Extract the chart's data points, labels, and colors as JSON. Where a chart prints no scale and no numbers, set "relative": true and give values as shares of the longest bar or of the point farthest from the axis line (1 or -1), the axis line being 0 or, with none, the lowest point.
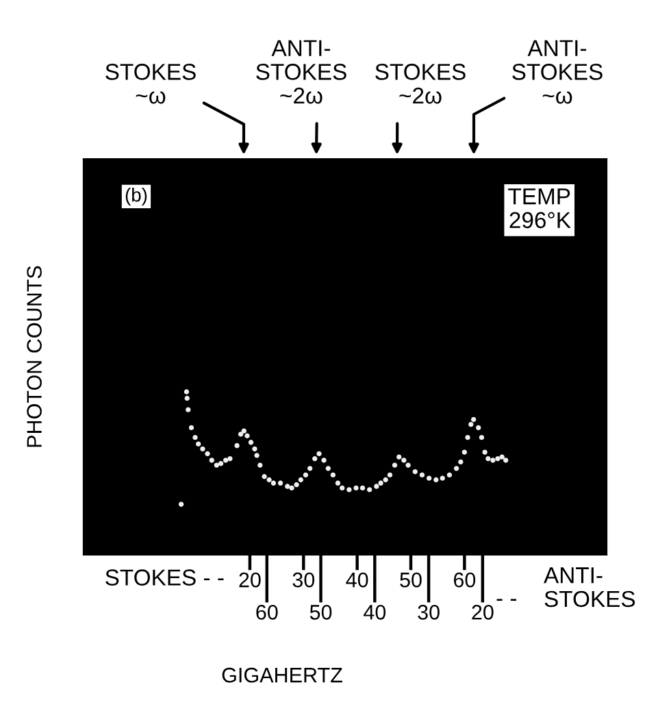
{
  "chart_data": {
    "type": "scatter",
    "xlabel": "GIGAHERTZ",
    "ylabel": "PHOTON COUNTS",
    "relative": true,
    "marker": "circle",
    "tick_labels": "x",
    "xlim": [
      -11,
      86.5
    ],
    "xticks": [
      20,
      30,
      40,
      50,
      60
    ],
    "x2lim": [
      94,
      -3
    ],
    "x2ticks": [
      60,
      50,
      40,
      30,
      20
    ],
    "x": [
      7.2,
      8.2,
      8.3,
      8.5,
      9.1,
      9.8,
      10.4,
      11.2,
      12.1,
      12.9,
      13.8,
      14.6,
      15.5,
      16.3,
      17.6,
      18.3,
      18.9,
      19.5,
      20.2,
      20.9,
      21.3,
      21.9,
      22.7,
      23.6,
      24.4,
      25.7,
      27.0,
      27.8,
      28.7,
      29.5,
      30.4,
      31.2,
      32.1,
      32.9,
      33.8,
      34.6,
      35.5,
      36.4,
      37.2,
      38.5,
      39.8,
      41.0,
      42.3,
      43.6,
      44.4,
      45.3,
      46.1,
      47.0,
      47.8,
      48.7,
      49.5,
      50.8,
      52.1,
      53.4,
      54.7,
      55.9,
      57.2,
      58.5,
      59.3,
      60.0,
      60.6,
      61.2,
      61.7,
      62.6,
      63.2,
      63.8,
      64.4,
      65.3,
      66.2,
      67.0,
      67.7
    ],
    "series": [
      {
        "color": "#f0f0f0",
        "values": [
          0.31,
          1.0,
          0.96,
          0.89,
          0.78,
          0.72,
          0.68,
          0.65,
          0.62,
          0.58,
          0.55,
          0.56,
          0.58,
          0.59,
          0.67,
          0.74,
          0.76,
          0.73,
          0.69,
          0.65,
          0.61,
          0.55,
          0.48,
          0.46,
          0.44,
          0.44,
          0.42,
          0.41,
          0.43,
          0.46,
          0.49,
          0.53,
          0.59,
          0.62,
          0.58,
          0.53,
          0.49,
          0.44,
          0.41,
          0.4,
          0.41,
          0.41,
          0.4,
          0.42,
          0.44,
          0.46,
          0.49,
          0.55,
          0.6,
          0.58,
          0.55,
          0.51,
          0.49,
          0.47,
          0.46,
          0.47,
          0.49,
          0.53,
          0.57,
          0.63,
          0.72,
          0.8,
          0.83,
          0.78,
          0.72,
          0.63,
          0.59,
          0.58,
          0.59,
          0.6,
          0.58
        ]
      }
    ],
    "annotations": [
      "STOKES - -",
      "- -",
      "ANTI-\nSTOKES",
      "(b)",
      "TEMP\n296°K",
      "STOKES\n~ω",
      "ANTI-\nSTOKES\n~2ω",
      "STOKES\n~2ω",
      "ANTI-\nSTOKES\n~ω"
    ]
  }
}
